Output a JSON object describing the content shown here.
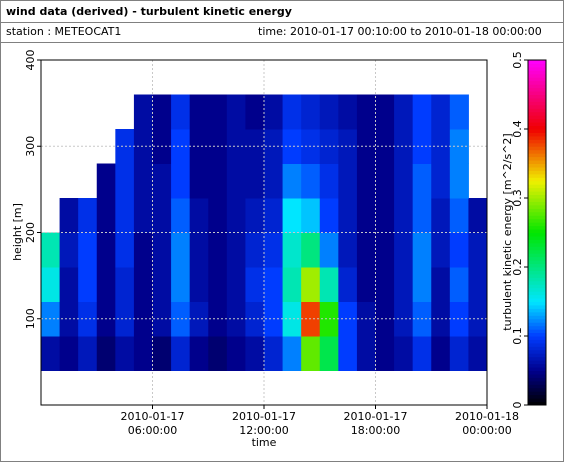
{
  "chart_data": {
    "type": "heatmap",
    "title": "wind data (derived) - turbulent kinetic energy",
    "station": "station : METEOCAT1",
    "subtitle": "time: 2010-01-17 00:10:00 to 2010-01-18 00:00:00",
    "x_label": "time",
    "y_label": "height [m]",
    "colorbar_label": "turbulent kinetic energy [m^2/s^2]",
    "x_bins": [
      0,
      1,
      2,
      3,
      4,
      5,
      6,
      7,
      8,
      9,
      10,
      11,
      12,
      13,
      14,
      15,
      16,
      17,
      18,
      19,
      20,
      21,
      22,
      23,
      24
    ],
    "y_bins": [
      40,
      80,
      120,
      160,
      200,
      240,
      280,
      320,
      360
    ],
    "values": [
      [
        0.06,
        0.05,
        0.07,
        0.04,
        0.06,
        0.05,
        0.04,
        0.08,
        0.05,
        0.04,
        0.05,
        0.06,
        0.08,
        0.12,
        0.28,
        0.22,
        0.1,
        0.06,
        0.05,
        0.06,
        0.09,
        0.05,
        0.08,
        0.06
      ],
      [
        0.12,
        0.06,
        0.09,
        0.05,
        0.08,
        0.05,
        0.06,
        0.11,
        0.07,
        0.05,
        0.06,
        0.08,
        0.1,
        0.16,
        0.38,
        0.26,
        0.1,
        0.06,
        0.05,
        0.07,
        0.11,
        0.06,
        0.1,
        0.07
      ],
      [
        0.16,
        0.06,
        0.1,
        0.05,
        0.08,
        0.05,
        0.06,
        0.12,
        0.06,
        0.05,
        0.06,
        0.09,
        0.1,
        0.18,
        0.3,
        0.18,
        0.08,
        0.05,
        0.05,
        0.07,
        0.12,
        0.06,
        0.11,
        0.07
      ],
      [
        0.18,
        0.07,
        0.1,
        0.05,
        0.09,
        0.05,
        0.06,
        0.12,
        0.06,
        0.05,
        0.06,
        0.08,
        0.09,
        0.17,
        0.2,
        0.12,
        0.07,
        0.05,
        0.05,
        0.07,
        0.12,
        0.07,
        0.1,
        0.07
      ],
      [
        null,
        0.06,
        0.09,
        0.05,
        0.09,
        0.06,
        0.06,
        0.11,
        0.06,
        0.05,
        0.06,
        0.07,
        0.08,
        0.15,
        0.14,
        0.1,
        0.07,
        0.05,
        0.05,
        0.07,
        0.11,
        0.07,
        0.11,
        0.06
      ],
      [
        null,
        null,
        null,
        0.05,
        0.09,
        0.06,
        0.06,
        0.1,
        0.05,
        0.05,
        0.06,
        0.06,
        0.07,
        0.12,
        0.11,
        0.09,
        0.07,
        0.05,
        0.05,
        0.07,
        0.11,
        0.08,
        0.12,
        null
      ],
      [
        null,
        null,
        null,
        null,
        0.09,
        0.06,
        0.05,
        0.1,
        0.05,
        0.05,
        0.06,
        0.06,
        0.07,
        0.1,
        0.09,
        0.08,
        0.07,
        0.05,
        0.05,
        0.07,
        0.1,
        0.08,
        0.12,
        null
      ],
      [
        null,
        null,
        null,
        null,
        null,
        0.06,
        0.05,
        0.09,
        0.05,
        0.05,
        0.06,
        0.05,
        0.06,
        0.09,
        0.08,
        0.07,
        0.06,
        0.05,
        0.05,
        0.07,
        0.1,
        0.08,
        0.11,
        null
      ]
    ],
    "xlim": [
      0,
      24
    ],
    "xticks": [
      {
        "value": 6,
        "label": "2010-01-17 06:00:00"
      },
      {
        "value": 12,
        "label": "2010-01-17 12:00:00"
      },
      {
        "value": 18,
        "label": "2010-01-17 18:00:00"
      },
      {
        "value": 24,
        "label": "2010-01-18 00:00:00"
      }
    ],
    "ylim": [
      0,
      400
    ],
    "yticks": [
      100,
      200,
      300,
      400
    ],
    "clim": [
      0,
      0.5
    ],
    "cticks": [
      0,
      0.1,
      0.2,
      0.3,
      0.4,
      0.5
    ],
    "grid": true
  }
}
